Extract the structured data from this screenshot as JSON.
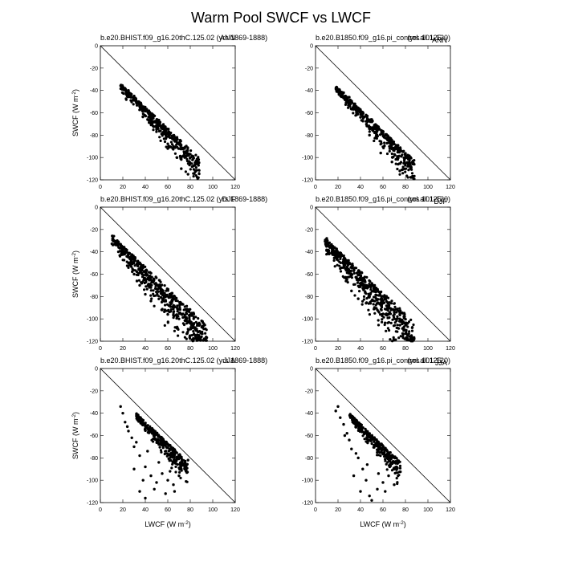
{
  "figure": {
    "title": "Warm Pool SWCF vs LWCF"
  },
  "chart_data": [
    {
      "type": "scatter",
      "title_left": "b.e20.BHIST.f09_g16.20thC.125.02 (yrs 1869-1888)",
      "title_right": "ANN",
      "xlabel": "",
      "ylabel": "SWCF (W m-2)",
      "xlim": [
        0,
        120
      ],
      "ylim": [
        -120,
        0
      ],
      "xticks": [
        0,
        20,
        40,
        60,
        80,
        100,
        120
      ],
      "yticks": [
        0,
        -20,
        -40,
        -60,
        -80,
        -100,
        -120
      ],
      "reference_line": [
        [
          0,
          0
        ],
        [
          120,
          -120
        ]
      ],
      "cloud": {
        "xmin": 18,
        "ymin": -34,
        "xmax": 88,
        "spread": 1.0,
        "n": 420,
        "seed": 11
      },
      "points": [
        [
          25,
          -40
        ],
        [
          30,
          -45
        ],
        [
          35,
          -52
        ],
        [
          40,
          -58
        ],
        [
          45,
          -62
        ],
        [
          50,
          -68
        ],
        [
          55,
          -72
        ],
        [
          60,
          -78
        ],
        [
          65,
          -84
        ],
        [
          70,
          -88
        ],
        [
          75,
          -92
        ],
        [
          80,
          -100
        ],
        [
          82,
          -108
        ],
        [
          85,
          -112
        ],
        [
          78,
          -115
        ],
        [
          72,
          -110
        ],
        [
          68,
          -100
        ],
        [
          60,
          -92
        ],
        [
          50,
          -75
        ],
        [
          42,
          -66
        ]
      ]
    },
    {
      "type": "scatter",
      "title_left": "b.e20.B1850.f09_g16.pi_control.all.125",
      "title_right": "(yrs 101-120)",
      "title_overlay": "ANN",
      "xlabel": "",
      "ylabel": "",
      "xlim": [
        0,
        120
      ],
      "ylim": [
        -120,
        0
      ],
      "xticks": [
        0,
        20,
        40,
        60,
        80,
        100,
        120
      ],
      "yticks": [
        0,
        -20,
        -40,
        -60,
        -80,
        -100,
        -120
      ],
      "reference_line": [
        [
          0,
          0
        ],
        [
          120,
          -120
        ]
      ],
      "cloud": {
        "xmin": 18,
        "ymin": -36,
        "xmax": 88,
        "spread": 1.0,
        "n": 420,
        "seed": 23
      },
      "points": [
        [
          25,
          -42
        ],
        [
          30,
          -46
        ],
        [
          35,
          -52
        ],
        [
          40,
          -58
        ],
        [
          45,
          -62
        ],
        [
          50,
          -66
        ],
        [
          55,
          -72
        ],
        [
          60,
          -78
        ],
        [
          65,
          -84
        ],
        [
          70,
          -88
        ],
        [
          75,
          -94
        ],
        [
          80,
          -100
        ],
        [
          85,
          -110
        ],
        [
          75,
          -112
        ],
        [
          68,
          -104
        ],
        [
          58,
          -96
        ],
        [
          48,
          -80
        ],
        [
          40,
          -64
        ]
      ]
    },
    {
      "type": "scatter",
      "title_left": "b.e20.BHIST.f09_g16.20thC.125.02 (yrs 1869-1888)",
      "title_right": "DJF",
      "xlabel": "",
      "ylabel": "SWCF (W m-2)",
      "xlim": [
        0,
        120
      ],
      "ylim": [
        -120,
        0
      ],
      "xticks": [
        0,
        20,
        40,
        60,
        80,
        100,
        120
      ],
      "yticks": [
        0,
        -20,
        -40,
        -60,
        -80,
        -100,
        -120
      ],
      "reference_line": [
        [
          0,
          0
        ],
        [
          120,
          -120
        ]
      ],
      "cloud": {
        "xmin": 10,
        "ymin": -25,
        "xmax": 95,
        "spread": 1.8,
        "n": 560,
        "seed": 37
      },
      "points": [
        [
          12,
          -26
        ],
        [
          15,
          -30
        ],
        [
          20,
          -40
        ],
        [
          25,
          -50
        ],
        [
          30,
          -60
        ],
        [
          35,
          -70
        ],
        [
          40,
          -78
        ],
        [
          45,
          -84
        ],
        [
          55,
          -92
        ],
        [
          60,
          -96
        ],
        [
          70,
          -100
        ],
        [
          80,
          -104
        ],
        [
          85,
          -110
        ],
        [
          90,
          -116
        ],
        [
          75,
          -98
        ],
        [
          65,
          -88
        ],
        [
          50,
          -76
        ]
      ]
    },
    {
      "type": "scatter",
      "title_left": "b.e20.B1850.f09_g16.pi_control.all.125",
      "title_right": "(yrs 101-120)",
      "title_overlay": "DJF",
      "xlabel": "",
      "ylabel": "",
      "xlim": [
        0,
        120
      ],
      "ylim": [
        -120,
        0
      ],
      "xticks": [
        0,
        20,
        40,
        60,
        80,
        100,
        120
      ],
      "yticks": [
        0,
        -20,
        -40,
        -60,
        -80,
        -100,
        -120
      ],
      "reference_line": [
        [
          0,
          0
        ],
        [
          120,
          -120
        ]
      ],
      "cloud": {
        "xmin": 8,
        "ymin": -27,
        "xmax": 88,
        "spread": 1.9,
        "n": 560,
        "seed": 53
      },
      "points": [
        [
          10,
          -28
        ],
        [
          14,
          -34
        ],
        [
          18,
          -45
        ],
        [
          22,
          -55
        ],
        [
          28,
          -65
        ],
        [
          32,
          -75
        ],
        [
          38,
          -82
        ],
        [
          45,
          -86
        ],
        [
          55,
          -92
        ],
        [
          65,
          -96
        ],
        [
          75,
          -100
        ],
        [
          82,
          -104
        ],
        [
          86,
          -108
        ],
        [
          72,
          -94
        ],
        [
          60,
          -86
        ],
        [
          48,
          -80
        ]
      ]
    },
    {
      "type": "scatter",
      "title_left": "b.e20.BHIST.f09_g16.20thC.125.02 (yrs 1869-1888)",
      "title_right": "JJA",
      "xlabel": "LWCF (W m-2)",
      "ylabel": "SWCF (W m-2)",
      "xlim": [
        0,
        120
      ],
      "ylim": [
        -120,
        0
      ],
      "xticks": [
        0,
        20,
        40,
        60,
        80,
        100,
        120
      ],
      "yticks": [
        0,
        -20,
        -40,
        -60,
        -80,
        -100,
        -120
      ],
      "reference_line": [
        [
          0,
          0
        ],
        [
          120,
          -120
        ]
      ],
      "cloud": {
        "xmin": 32,
        "ymin": -40,
        "xmax": 78,
        "spread": 0.9,
        "n": 320,
        "seed": 71
      },
      "points": [
        [
          18,
          -34
        ],
        [
          20,
          -40
        ],
        [
          22,
          -48
        ],
        [
          25,
          -56
        ],
        [
          28,
          -62
        ],
        [
          30,
          -70
        ],
        [
          35,
          -78
        ],
        [
          40,
          -88
        ],
        [
          45,
          -96
        ],
        [
          35,
          -110
        ],
        [
          40,
          -116
        ],
        [
          50,
          -102
        ],
        [
          55,
          -94
        ],
        [
          60,
          -100
        ],
        [
          65,
          -104
        ],
        [
          70,
          -96
        ],
        [
          75,
          -90
        ],
        [
          78,
          -82
        ],
        [
          72,
          -86
        ],
        [
          62,
          -92
        ],
        [
          52,
          -84
        ],
        [
          42,
          -74
        ],
        [
          32,
          -66
        ],
        [
          24,
          -52
        ],
        [
          30,
          -90
        ],
        [
          38,
          -100
        ],
        [
          48,
          -108
        ],
        [
          58,
          -112
        ],
        [
          66,
          -110
        ]
      ]
    },
    {
      "type": "scatter",
      "title_left": "b.e20.B1850.f09_g16.pi_control.all.125",
      "title_right": "(yrs 101-120)",
      "title_overlay": "JJA",
      "xlabel": "LWCF (W m-2)",
      "ylabel": "",
      "xlim": [
        0,
        120
      ],
      "ylim": [
        -120,
        0
      ],
      "xticks": [
        0,
        20,
        40,
        60,
        80,
        100,
        120
      ],
      "yticks": [
        0,
        -20,
        -40,
        -60,
        -80,
        -100,
        -120
      ],
      "reference_line": [
        [
          0,
          0
        ],
        [
          120,
          -120
        ]
      ],
      "cloud": {
        "xmin": 30,
        "ymin": -40,
        "xmax": 76,
        "spread": 0.9,
        "n": 320,
        "seed": 89
      },
      "points": [
        [
          20,
          -34
        ],
        [
          18,
          -38
        ],
        [
          22,
          -44
        ],
        [
          25,
          -50
        ],
        [
          28,
          -58
        ],
        [
          30,
          -64
        ],
        [
          32,
          -72
        ],
        [
          38,
          -80
        ],
        [
          42,
          -90
        ],
        [
          45,
          -100
        ],
        [
          40,
          -110
        ],
        [
          48,
          -114
        ],
        [
          55,
          -108
        ],
        [
          60,
          -102
        ],
        [
          65,
          -96
        ],
        [
          70,
          -90
        ],
        [
          74,
          -84
        ],
        [
          66,
          -88
        ],
        [
          56,
          -94
        ],
        [
          46,
          -86
        ],
        [
          36,
          -76
        ],
        [
          26,
          -60
        ],
        [
          34,
          -96
        ],
        [
          50,
          -118
        ],
        [
          62,
          -110
        ],
        [
          70,
          -104
        ]
      ]
    }
  ]
}
